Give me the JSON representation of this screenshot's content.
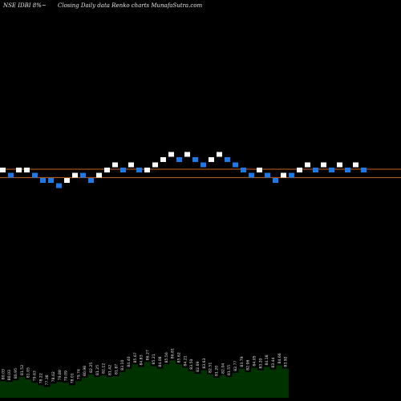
{
  "header": {
    "symbol": "NSE IDBI 8%~",
    "subtitle": "Closing Daily data Renko  charts MunafaSutra.com"
  },
  "colors": {
    "background": "#000000",
    "up_brick": "#ffffff",
    "down_brick": "#1e78e6",
    "reference_line": "#c8641e",
    "volume_fill": "#003200",
    "volume_label": "#e6e6e6"
  },
  "chart_data": {
    "type": "renko",
    "title": "NSE IDBI 8%~",
    "subtitle": "Closing Daily data Renko charts MunafaSutra.com",
    "bricks": [
      {
        "level": 0,
        "dir": "up"
      },
      {
        "level": -1,
        "dir": "down"
      },
      {
        "level": 0,
        "dir": "up"
      },
      {
        "level": 0,
        "dir": "up"
      },
      {
        "level": -1,
        "dir": "down"
      },
      {
        "level": -2,
        "dir": "down"
      },
      {
        "level": -2,
        "dir": "down"
      },
      {
        "level": -3,
        "dir": "down"
      },
      {
        "level": -2,
        "dir": "up"
      },
      {
        "level": -1,
        "dir": "up"
      },
      {
        "level": -1,
        "dir": "down"
      },
      {
        "level": -2,
        "dir": "down"
      },
      {
        "level": -1,
        "dir": "up"
      },
      {
        "level": 0,
        "dir": "up"
      },
      {
        "level": 1,
        "dir": "up"
      },
      {
        "level": 0,
        "dir": "down"
      },
      {
        "level": 1,
        "dir": "up"
      },
      {
        "level": 0,
        "dir": "down"
      },
      {
        "level": 0,
        "dir": "up"
      },
      {
        "level": 1,
        "dir": "up"
      },
      {
        "level": 2,
        "dir": "up"
      },
      {
        "level": 3,
        "dir": "up"
      },
      {
        "level": 2,
        "dir": "down"
      },
      {
        "level": 3,
        "dir": "up"
      },
      {
        "level": 2,
        "dir": "down"
      },
      {
        "level": 1,
        "dir": "down"
      },
      {
        "level": 2,
        "dir": "up"
      },
      {
        "level": 3,
        "dir": "up"
      },
      {
        "level": 2,
        "dir": "down"
      },
      {
        "level": 1,
        "dir": "down"
      },
      {
        "level": 0,
        "dir": "down"
      },
      {
        "level": -1,
        "dir": "down"
      },
      {
        "level": 0,
        "dir": "up"
      },
      {
        "level": -1,
        "dir": "down"
      },
      {
        "level": -2,
        "dir": "down"
      },
      {
        "level": -1,
        "dir": "up"
      },
      {
        "level": -1,
        "dir": "down"
      },
      {
        "level": 0,
        "dir": "up"
      },
      {
        "level": 1,
        "dir": "up"
      },
      {
        "level": 0,
        "dir": "down"
      },
      {
        "level": 1,
        "dir": "up"
      },
      {
        "level": 0,
        "dir": "down"
      },
      {
        "level": 1,
        "dir": "up"
      },
      {
        "level": 0,
        "dir": "down"
      },
      {
        "level": 1,
        "dir": "up"
      },
      {
        "level": 0,
        "dir": "down"
      }
    ],
    "reference_lines": [
      0,
      -1.6
    ],
    "volume": [
      {
        "v": 0.4,
        "label": "80.03"
      },
      {
        "v": 0.38,
        "label": "80.03"
      },
      {
        "v": 0.42,
        "label": "80.95"
      },
      {
        "v": 0.5,
        "label": "81.52"
      },
      {
        "v": 0.44,
        "label": "81.05"
      },
      {
        "v": 0.36,
        "label": "79.63"
      },
      {
        "v": 0.3,
        "label": "78.22"
      },
      {
        "v": 0.26,
        "label": "77.38"
      },
      {
        "v": 0.34,
        "label": "78.62"
      },
      {
        "v": 0.38,
        "label": "79.88"
      },
      {
        "v": 0.36,
        "label": "79.09"
      },
      {
        "v": 0.3,
        "label": "78.01"
      },
      {
        "v": 0.4,
        "label": "79.74"
      },
      {
        "v": 0.48,
        "label": "80.98"
      },
      {
        "v": 0.56,
        "label": "82.25"
      },
      {
        "v": 0.5,
        "label": "81.25"
      },
      {
        "v": 0.54,
        "label": "82.12"
      },
      {
        "v": 0.5,
        "label": "81.42"
      },
      {
        "v": 0.52,
        "label": "81.87"
      },
      {
        "v": 0.62,
        "label": "83.10"
      },
      {
        "v": 0.7,
        "label": "84.40"
      },
      {
        "v": 0.8,
        "label": "85.67"
      },
      {
        "v": 0.74,
        "label": "84.83"
      },
      {
        "v": 0.86,
        "label": "86.27"
      },
      {
        "v": 0.76,
        "label": "85.21"
      },
      {
        "v": 0.7,
        "label": "84.08"
      },
      {
        "v": 0.8,
        "label": "85.56"
      },
      {
        "v": 0.9,
        "label": "86.81"
      },
      {
        "v": 0.8,
        "label": "85.62"
      },
      {
        "v": 0.72,
        "label": "84.21"
      },
      {
        "v": 0.64,
        "label": "83.50"
      },
      {
        "v": 0.58,
        "label": "82.69"
      },
      {
        "v": 0.66,
        "label": "83.63"
      },
      {
        "v": 0.56,
        "label": "82.51"
      },
      {
        "v": 0.48,
        "label": "81.20"
      },
      {
        "v": 0.54,
        "label": "82.04"
      },
      {
        "v": 0.5,
        "label": "81.55"
      },
      {
        "v": 0.6,
        "label": "82.77"
      },
      {
        "v": 0.7,
        "label": "83.79"
      },
      {
        "v": 0.62,
        "label": "82.96"
      },
      {
        "v": 0.72,
        "label": "84.05"
      },
      {
        "v": 0.66,
        "label": "83.20"
      },
      {
        "v": 0.74,
        "label": "84.18"
      },
      {
        "v": 0.68,
        "label": "83.44"
      },
      {
        "v": 0.78,
        "label": "84.66"
      },
      {
        "v": 0.7,
        "label": "83.92"
      }
    ]
  }
}
